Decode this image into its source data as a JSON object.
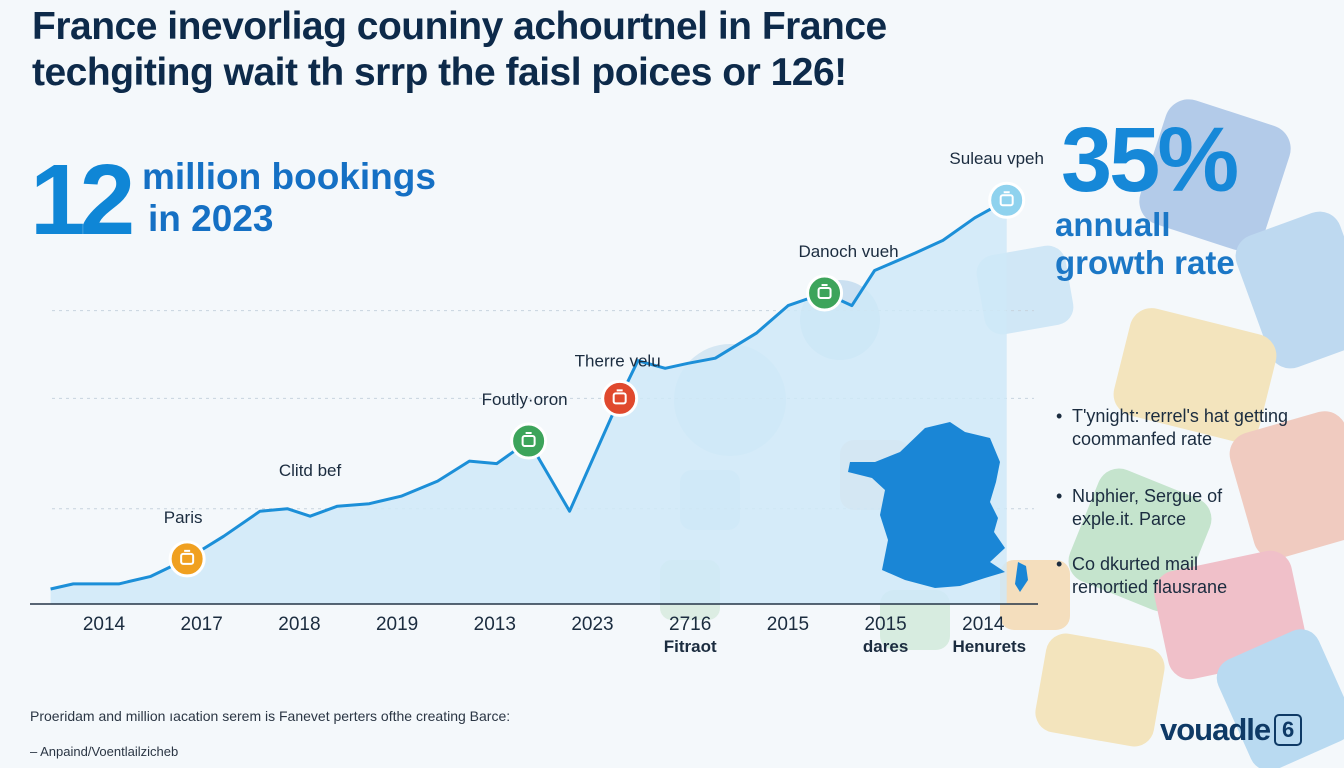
{
  "title": {
    "line1": "France inevorliag couniny achourtnel in France",
    "line2": "techgiting wait th srrp the faisl poices or 126!"
  },
  "stat_left": {
    "number": "12",
    "line1": "million bookings",
    "line2": "in 2023"
  },
  "stat_right": {
    "percent": "35%",
    "line1": "annuall",
    "line2": "growth rate"
  },
  "notes": [
    {
      "bullet": "•",
      "text1": "T'ynight: rerrel's hat getting",
      "text2": "coommanfed rate"
    },
    {
      "bullet": "•",
      "text1": "Nuphier, Sergue of",
      "text2": "exple.it. Parce"
    },
    {
      "bullet": "•",
      "text1": "Co dkurted mail",
      "text2": "remortied flausrane"
    }
  ],
  "footer": {
    "note": "Proeridam and million ıacation serem is Fanevet perters ofthe creating Barce:",
    "source": "– Anpaind/Voentlailzicheb"
  },
  "brand": {
    "name": "vouadle",
    "badge": "6"
  },
  "colors": {
    "line": "#1c8fd8",
    "area": "#cfe9f8",
    "accent_blue": "#0f86d6",
    "title": "#0d2a4a",
    "marker_orange": "#f0a020",
    "marker_green": "#3da45b",
    "marker_red": "#e0492e",
    "marker_light_blue": "#8fd2ee",
    "france_map": "#1a86d6"
  },
  "chart_data": {
    "type": "area",
    "x_tick_labels": [
      "2014",
      "2017",
      "2018",
      "2019",
      "2013",
      "2023",
      "2716",
      "2015",
      "2015",
      "2014"
    ],
    "x_sublabels": [
      {
        "tick": "2716",
        "text": "Fitraot"
      },
      {
        "tick": "2015",
        "text": "dares"
      },
      {
        "tick": "2014",
        "text": "Henurets"
      }
    ],
    "series": [
      {
        "values": [
          0.3,
          0.5,
          0.5,
          0.8,
          1.5,
          2.4,
          3.4,
          3.5,
          3.2,
          3.6,
          3.7,
          4.0,
          4.6,
          5.4,
          5.3,
          6.2,
          3.4,
          7.9,
          9.4,
          9.1,
          9.3,
          9.5,
          10.5,
          11.6,
          12.1,
          11.6,
          13.0,
          13.7,
          14.2,
          15.1,
          15.8
        ]
      }
    ],
    "x_positions": [
      0,
      0.5,
      1.5,
      2.2,
      3.0,
      3.8,
      4.6,
      5.2,
      5.7,
      6.3,
      7.0,
      7.7,
      8.5,
      9.2,
      9.8,
      10.5,
      11.4,
      12.5,
      12.9,
      13.5,
      14.0,
      14.6,
      15.5,
      16.2,
      17.0,
      17.6,
      18.1,
      19.0,
      19.6,
      20.3,
      21.0
    ],
    "xlim": [
      -0.1,
      21.6
    ],
    "ylim": [
      -0.3,
      19
    ],
    "grid": "horizontal dashed",
    "milestones": [
      {
        "label": "Paris",
        "index": 4,
        "color": "#f0a020",
        "icon": "suitcase-icon"
      },
      {
        "label": "Clitd bef",
        "index": 8,
        "color": null,
        "icon": null
      },
      {
        "label": "Foutly·oron",
        "index": 15,
        "color": "#3da45b",
        "icon": "bag-icon"
      },
      {
        "label": "Therre velu",
        "index": 17,
        "color": "#e0492e",
        "icon": "luggage-icon"
      },
      {
        "label": "Danoch vueh",
        "index": 24,
        "color": "#3da45b",
        "icon": "box-icon"
      },
      {
        "label": "Suleau vpeh",
        "index": 30,
        "color": "#8fd2ee",
        "icon": "plane-icon"
      }
    ]
  }
}
